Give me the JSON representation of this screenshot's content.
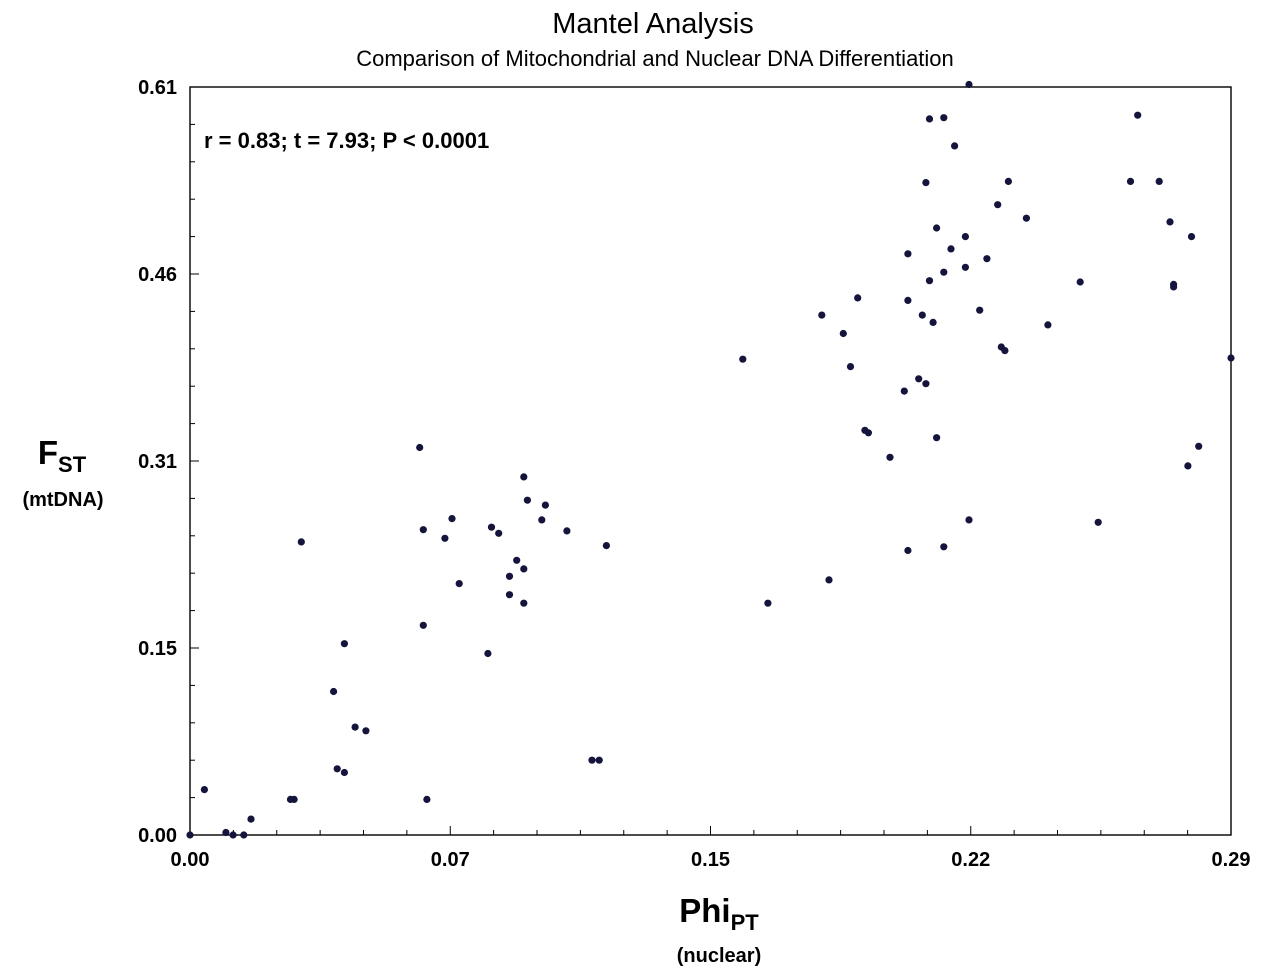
{
  "chart_data": {
    "type": "scatter",
    "title": "Mantel Analysis",
    "subtitle": "Comparison of Mitochondrial and Nuclear DNA Differentiation",
    "annotation": "r = 0.83; t = 7.93; P < 0.0001",
    "xlabel": {
      "main": "Phi",
      "sub": "PT",
      "unit": "(nuclear)"
    },
    "ylabel": {
      "main": "F",
      "sub": "ST",
      "unit": "(mtDNA)"
    },
    "xlim": [
      0.0,
      0.29
    ],
    "ylim": [
      0.0,
      0.61
    ],
    "x_ticks": [
      "0.00",
      "0.07",
      "0.15",
      "0.22",
      "0.29"
    ],
    "y_ticks": [
      "0.00",
      "0.15",
      "0.31",
      "0.46",
      "0.61"
    ],
    "grid": false,
    "marker_color": "#14143c",
    "points": [
      [
        0.0,
        0.0
      ],
      [
        0.004,
        0.037
      ],
      [
        0.01,
        0.002
      ],
      [
        0.012,
        0.0
      ],
      [
        0.015,
        0.0
      ],
      [
        0.017,
        0.013
      ],
      [
        0.028,
        0.029
      ],
      [
        0.029,
        0.029
      ],
      [
        0.031,
        0.239
      ],
      [
        0.04,
        0.117
      ],
      [
        0.041,
        0.054
      ],
      [
        0.043,
        0.051
      ],
      [
        0.043,
        0.156
      ],
      [
        0.046,
        0.088
      ],
      [
        0.049,
        0.085
      ],
      [
        0.064,
        0.316
      ],
      [
        0.065,
        0.249
      ],
      [
        0.065,
        0.171
      ],
      [
        0.066,
        0.029
      ],
      [
        0.071,
        0.242
      ],
      [
        0.073,
        0.258
      ],
      [
        0.075,
        0.205
      ],
      [
        0.083,
        0.148
      ],
      [
        0.084,
        0.251
      ],
      [
        0.086,
        0.246
      ],
      [
        0.089,
        0.196
      ],
      [
        0.089,
        0.211
      ],
      [
        0.091,
        0.224
      ],
      [
        0.093,
        0.189
      ],
      [
        0.093,
        0.217
      ],
      [
        0.093,
        0.292
      ],
      [
        0.094,
        0.273
      ],
      [
        0.098,
        0.257
      ],
      [
        0.099,
        0.269
      ],
      [
        0.105,
        0.248
      ],
      [
        0.112,
        0.061
      ],
      [
        0.114,
        0.061
      ],
      [
        0.116,
        0.236
      ],
      [
        0.154,
        0.388
      ],
      [
        0.161,
        0.189
      ],
      [
        0.176,
        0.424
      ],
      [
        0.178,
        0.208
      ],
      [
        0.182,
        0.409
      ],
      [
        0.184,
        0.382
      ],
      [
        0.186,
        0.438
      ],
      [
        0.188,
        0.33
      ],
      [
        0.189,
        0.328
      ],
      [
        0.195,
        0.308
      ],
      [
        0.199,
        0.362
      ],
      [
        0.2,
        0.474
      ],
      [
        0.2,
        0.436
      ],
      [
        0.2,
        0.232
      ],
      [
        0.203,
        0.372
      ],
      [
        0.204,
        0.424
      ],
      [
        0.205,
        0.368
      ],
      [
        0.205,
        0.532
      ],
      [
        0.206,
        0.452
      ],
      [
        0.206,
        0.584
      ],
      [
        0.207,
        0.418
      ],
      [
        0.208,
        0.495
      ],
      [
        0.208,
        0.324
      ],
      [
        0.21,
        0.585
      ],
      [
        0.21,
        0.459
      ],
      [
        0.21,
        0.235
      ],
      [
        0.212,
        0.478
      ],
      [
        0.213,
        0.562
      ],
      [
        0.216,
        0.463
      ],
      [
        0.216,
        0.488
      ],
      [
        0.217,
        0.257
      ],
      [
        0.217,
        0.612
      ],
      [
        0.22,
        0.428
      ],
      [
        0.222,
        0.47
      ],
      [
        0.225,
        0.514
      ],
      [
        0.226,
        0.398
      ],
      [
        0.227,
        0.395
      ],
      [
        0.228,
        0.533
      ],
      [
        0.233,
        0.503
      ],
      [
        0.239,
        0.416
      ],
      [
        0.248,
        0.451
      ],
      [
        0.253,
        0.255
      ],
      [
        0.262,
        0.533
      ],
      [
        0.264,
        0.587
      ],
      [
        0.27,
        0.533
      ],
      [
        0.273,
        0.5
      ],
      [
        0.274,
        0.449
      ],
      [
        0.274,
        0.447
      ],
      [
        0.278,
        0.301
      ],
      [
        0.279,
        0.488
      ],
      [
        0.281,
        0.317
      ],
      [
        0.29,
        0.389
      ]
    ]
  }
}
